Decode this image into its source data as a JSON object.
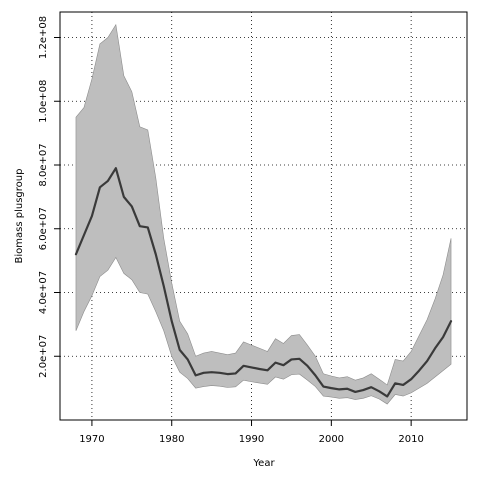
{
  "chart_data": {
    "type": "line",
    "title": "",
    "xlabel": "Year",
    "ylabel": "Biomass plusgroup",
    "xlim": [
      1966,
      2017
    ],
    "ylim": [
      0,
      128000000
    ],
    "grid": true,
    "x_ticks": [
      1970,
      1980,
      1990,
      2000,
      2010
    ],
    "x_tick_labels": [
      "1970",
      "1980",
      "1990",
      "2000",
      "2010"
    ],
    "y_ticks": [
      20000000,
      40000000,
      60000000,
      80000000,
      100000000,
      120000000
    ],
    "y_tick_labels": [
      "2.0e+07",
      "4.0e+07",
      "6.0e+07",
      "8.0e+07",
      "1.0e+08",
      "1.2e+08"
    ],
    "x": [
      1968,
      1969,
      1970,
      1971,
      1972,
      1973,
      1974,
      1975,
      1976,
      1977,
      1978,
      1979,
      1980,
      1981,
      1982,
      1983,
      1984,
      1985,
      1986,
      1987,
      1988,
      1989,
      1990,
      1991,
      1992,
      1993,
      1994,
      1995,
      1996,
      1997,
      1998,
      1999,
      2000,
      2001,
      2002,
      2003,
      2004,
      2005,
      2006,
      2007,
      2008,
      2009,
      2010,
      2011,
      2012,
      2013,
      2014,
      2015
    ],
    "series": [
      {
        "values": [
          52000000,
          58000000,
          64000000,
          73000000,
          75000000,
          79000000,
          70000000,
          67000000,
          60800000,
          60400000,
          52000000,
          42000000,
          31000000,
          22000000,
          19000000,
          14000000,
          14800000,
          15000000,
          14800000,
          14400000,
          14600000,
          17000000,
          16500000,
          16000000,
          15600000,
          18000000,
          17200000,
          19000000,
          19200000,
          17000000,
          14000000,
          10500000,
          10000000,
          9600000,
          9800000,
          8800000,
          9400000,
          10300000,
          9000000,
          7400000,
          11500000,
          11000000,
          12800000,
          15500000,
          18500000,
          22500000,
          26000000,
          31000000
        ]
      }
    ],
    "band": {
      "lower": [
        28000000,
        34000000,
        39000000,
        45000000,
        47000000,
        51000000,
        46000000,
        44000000,
        40000000,
        39500000,
        34000000,
        28000000,
        20000000,
        15000000,
        13000000,
        10000000,
        10500000,
        10800000,
        10600000,
        10200000,
        10400000,
        12500000,
        12000000,
        11600000,
        11200000,
        13500000,
        12800000,
        14200000,
        14400000,
        12500000,
        10500000,
        7500000,
        7200000,
        6800000,
        7000000,
        6400000,
        6800000,
        7600000,
        6600000,
        5000000,
        8000000,
        7500000,
        8500000,
        10000000,
        11500000,
        13500000,
        15500000,
        17500000
      ],
      "upper": [
        95000000,
        98000000,
        107000000,
        118000000,
        120000000,
        124000000,
        108000000,
        103000000,
        92000000,
        91000000,
        76000000,
        57000000,
        43000000,
        31000000,
        27000000,
        20000000,
        21000000,
        21500000,
        21000000,
        20500000,
        21000000,
        24500000,
        23500000,
        22500000,
        21500000,
        25500000,
        24000000,
        26500000,
        26800000,
        23500000,
        20000000,
        14500000,
        13800000,
        13200000,
        13600000,
        12500000,
        13200000,
        14500000,
        12800000,
        11000000,
        19000000,
        18500000,
        21500000,
        26500000,
        31500000,
        38000000,
        45500000,
        57000000
      ]
    },
    "colors": {
      "band_fill": "#bebebe",
      "band_stroke": "#8c8c8c",
      "line": "#3a3a3a"
    }
  }
}
